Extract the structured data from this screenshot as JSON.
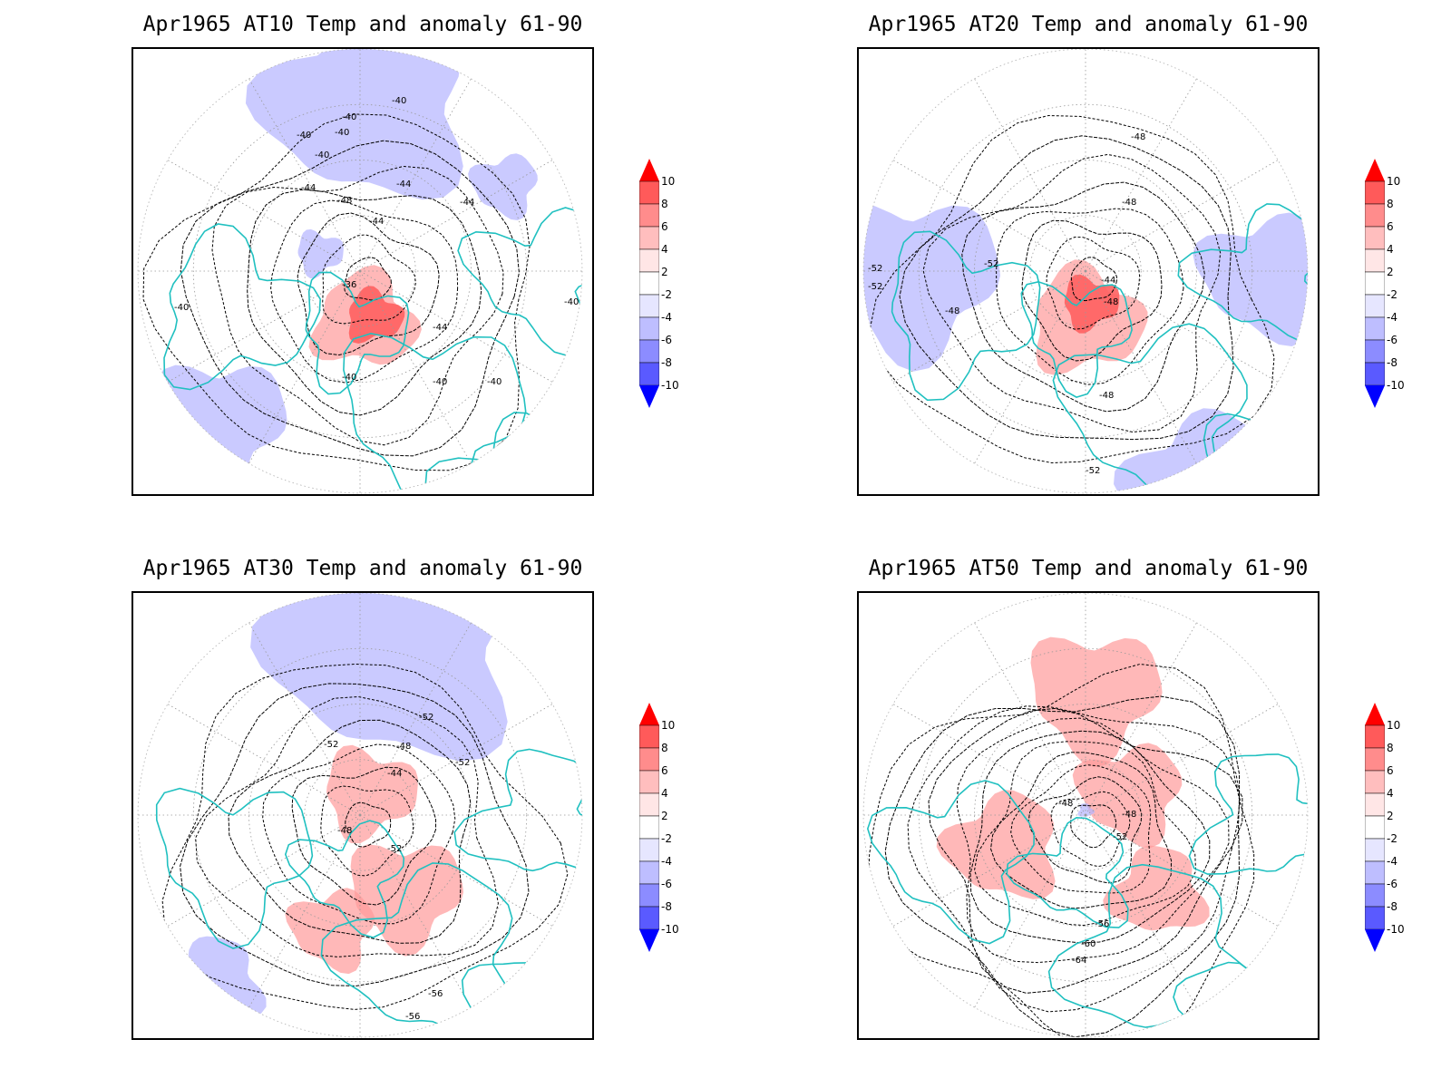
{
  "panels": [
    {
      "id": "at10",
      "title": "Apr1965 AT10 Temp and anomaly 61-90",
      "contour_labels": [
        "-40",
        "-40",
        "-40",
        "-40",
        "-40",
        "-44",
        "-48",
        "-44",
        "-44",
        "-44",
        "-36",
        "-44",
        "-40",
        "-40",
        "-40",
        "-40",
        "-40"
      ]
    },
    {
      "id": "at20",
      "title": "Apr1965 AT20 Temp and anomaly 61-90",
      "contour_labels": [
        "-48",
        "-48",
        "-44",
        "-52",
        "-52",
        "-48",
        "-48",
        "-48",
        "-52",
        "-52"
      ]
    },
    {
      "id": "at30",
      "title": "Apr1965 AT30 Temp and anomaly 61-90",
      "contour_labels": [
        "-52",
        "-52",
        "-48",
        "-44",
        "-52",
        "-48",
        "-52",
        "-56",
        "-56"
      ]
    },
    {
      "id": "at50",
      "title": "Apr1965 AT50 Temp and anomaly 61-90",
      "contour_labels": [
        "-48",
        "-48",
        "-52",
        "-56",
        "-60",
        "-64"
      ]
    }
  ],
  "colorbar": {
    "levels": [
      "10",
      "8",
      "6",
      "4",
      "2",
      "-2",
      "-4",
      "-6",
      "-8",
      "-10"
    ],
    "colors": [
      "#ff0000",
      "#ff5a5a",
      "#ff8c8c",
      "#ffbebe",
      "#ffe6e6",
      "#ffffff",
      "#e6e6ff",
      "#bebeff",
      "#8c8cff",
      "#5a5aff",
      "#0000ff"
    ]
  },
  "colors": {
    "coastline": "#20c0c0",
    "contour": "#000000",
    "grid": "#999999",
    "warm_anomaly": "#ff9a9a",
    "cold_anomaly": "#b4b4ff"
  }
}
